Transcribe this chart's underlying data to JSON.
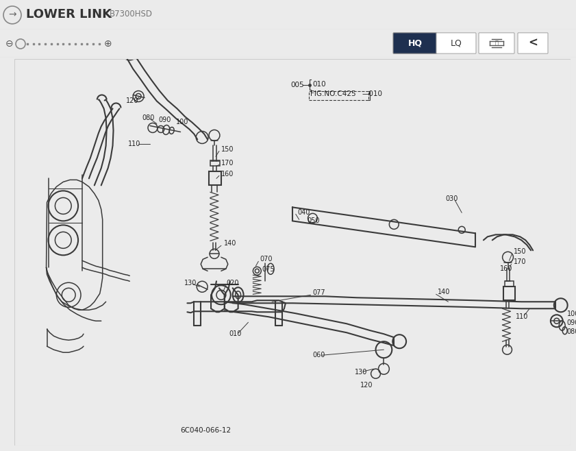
{
  "title": "LOWER LINK",
  "subtitle": "B7300HSD",
  "bg_color": "#ebebeb",
  "diagram_bg": "#ffffff",
  "header_bg": "#e5e5e5",
  "hq_btn_color": "#1e3050",
  "toolbar_bg": "#e0e0e0",
  "line_color": "#3a3a3a",
  "text_color": "#222222",
  "fig_reference": "FIG.NO.C425",
  "bottom_code": "6C040-066-12"
}
